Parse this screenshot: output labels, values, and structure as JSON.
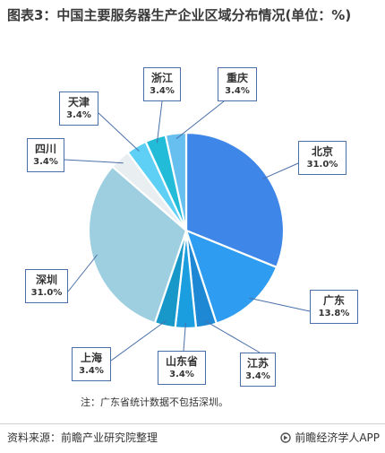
{
  "title": "图表3：中国主要服务器生产企业区域分布情况(单位：%)",
  "chart_data": {
    "type": "pie",
    "slices": [
      {
        "label": "北京",
        "value": 31.0,
        "display": "31.0%",
        "color": "#3e86e8"
      },
      {
        "label": "广东",
        "value": 13.8,
        "display": "13.8%",
        "color": "#2e9cf0"
      },
      {
        "label": "江苏",
        "value": 3.4,
        "display": "3.4%",
        "color": "#1e88d4"
      },
      {
        "label": "山东省",
        "value": 3.4,
        "display": "3.4%",
        "color": "#1a9ee0"
      },
      {
        "label": "上海",
        "value": 3.4,
        "display": "3.4%",
        "color": "#1798c8"
      },
      {
        "label": "深圳",
        "value": 31.0,
        "display": "31.0%",
        "color": "#9dcfe0"
      },
      {
        "label": "四川",
        "value": 3.4,
        "display": "3.4%",
        "color": "#e9eef1"
      },
      {
        "label": "天津",
        "value": 3.4,
        "display": "3.4%",
        "color": "#5fd0f5"
      },
      {
        "label": "浙江",
        "value": 3.4,
        "display": "3.4%",
        "color": "#22bcd8"
      },
      {
        "label": "重庆",
        "value": 3.4,
        "display": "3.4%",
        "color": "#67bfef"
      }
    ]
  },
  "note": "注：广东省统计数据不包括深圳。",
  "source": "资料来源：前瞻产业研究院整理",
  "brand": "前瞻经济学人APP"
}
